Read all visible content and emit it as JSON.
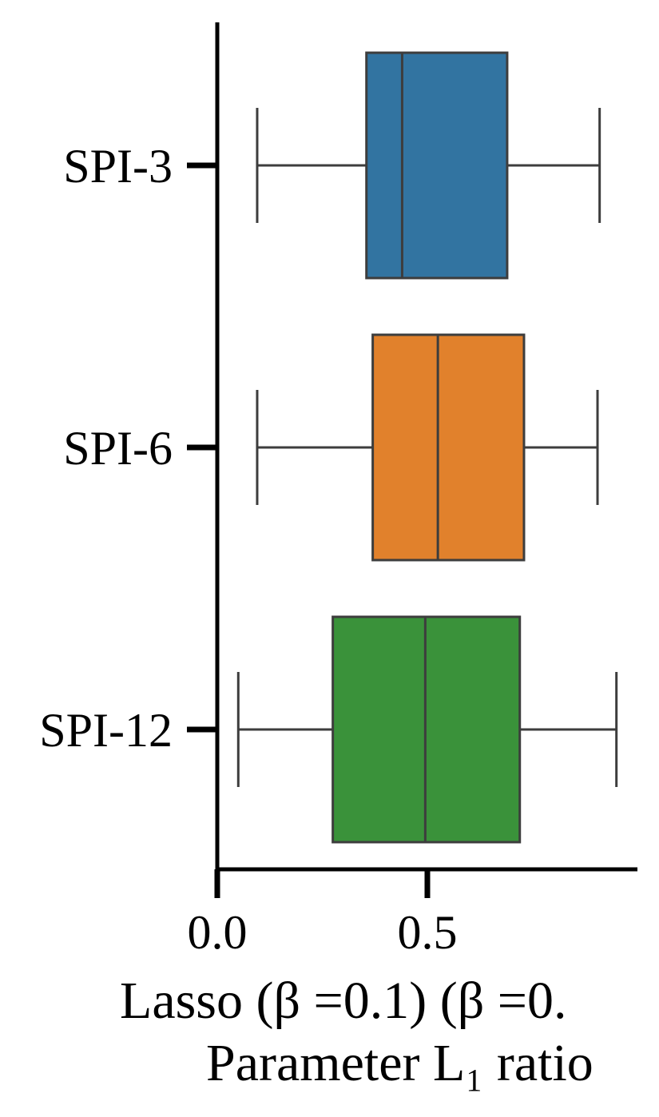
{
  "chart_data": {
    "type": "boxplot",
    "orientation": "horizontal",
    "categories": [
      "SPI-3",
      "SPI-6",
      "SPI-12"
    ],
    "boxes": [
      {
        "category": "SPI-3",
        "whisker_low": 0.095,
        "q1": 0.355,
        "median": 0.44,
        "q3": 0.69,
        "whisker_high": 0.91,
        "color": "#3274a1"
      },
      {
        "category": "SPI-6",
        "whisker_low": 0.095,
        "q1": 0.37,
        "median": 0.525,
        "q3": 0.73,
        "whisker_high": 0.905,
        "color": "#e1812c"
      },
      {
        "category": "SPI-12",
        "whisker_low": 0.05,
        "q1": 0.275,
        "median": 0.495,
        "q3": 0.72,
        "whisker_high": 0.95,
        "color": "#3a923a"
      }
    ],
    "xticks": [
      0.0,
      0.5
    ],
    "xtick_labels": [
      "0.0",
      "0.5"
    ],
    "xlim": [
      0,
      1.0
    ],
    "xlabel_line1": "Lasso (β =0.1) (β =0.",
    "xlabel_line2": "Parameter L₁ ratio",
    "line_color": "#3d3d3d",
    "grid": false,
    "legend": "none"
  }
}
